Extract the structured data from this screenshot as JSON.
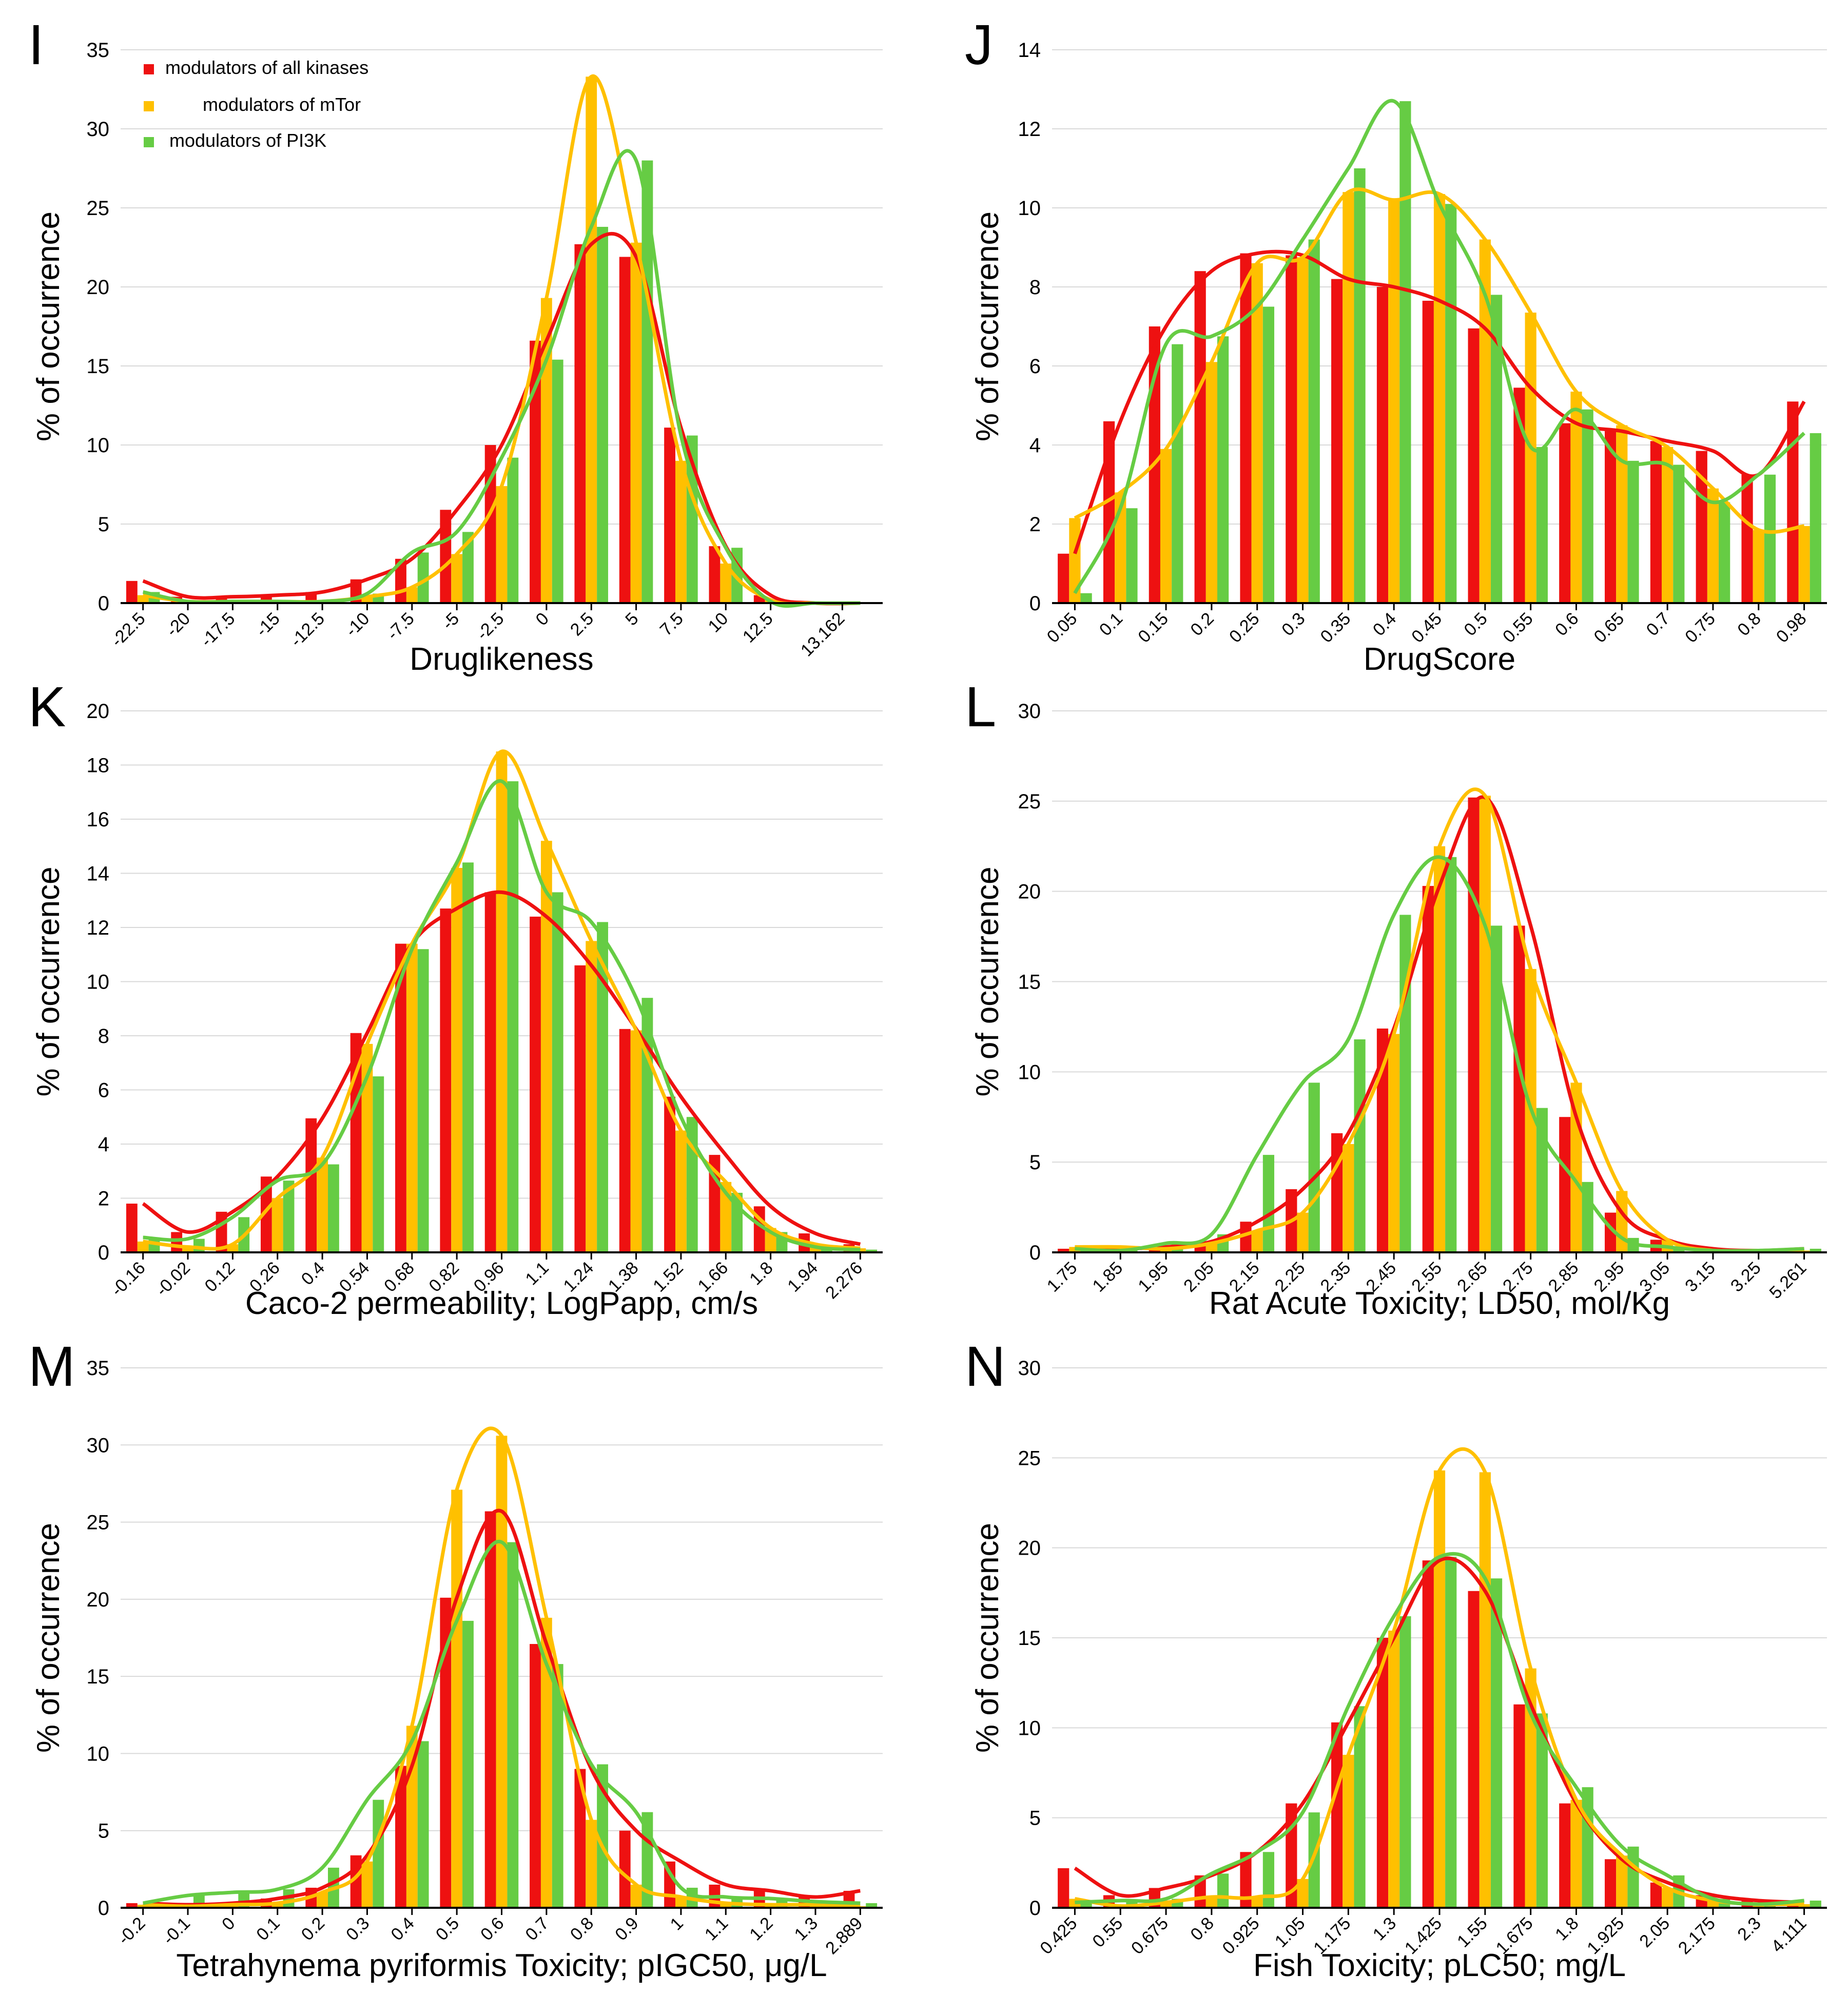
{
  "figure": {
    "legend": [
      {
        "name": "modulators of all kinases",
        "color": "#ee1111"
      },
      {
        "name": "modulators of mTor",
        "color": "#ffc000"
      },
      {
        "name": "modulators of PI3K",
        "color": "#66cc44"
      }
    ]
  },
  "chart_data": [
    {
      "panel": "I",
      "type": "bar",
      "xlabel": "Druglikeness",
      "ylabel": "% of occurrence",
      "ylim": [
        0,
        35
      ],
      "yticks": [
        0,
        5,
        10,
        15,
        20,
        25,
        30,
        35
      ],
      "tick_labels": [
        "-22.5",
        "-20",
        "-17.5",
        "-15",
        "-12.5",
        "-10",
        "-7.5",
        "-5",
        "-2.5",
        "0",
        "2.5",
        "5",
        "7.5",
        "10",
        "12.5",
        "13.162"
      ],
      "tick_positions": [
        0,
        1,
        2,
        3,
        4,
        5,
        6,
        7,
        8,
        9,
        10,
        11,
        12,
        13,
        14,
        15.6
      ],
      "bin_count": 17,
      "series": [
        {
          "name": "modulators of all kinases",
          "color": "#ee1111",
          "values": [
            1.4,
            0.4,
            0.4,
            0.5,
            0.7,
            1.5,
            2.8,
            5.9,
            10,
            16.6,
            22.7,
            21.9,
            11.1,
            3.6,
            0.5,
            0,
            0
          ]
        },
        {
          "name": "modulators of mTor",
          "color": "#ffc000",
          "values": [
            0.5,
            0.1,
            0.1,
            0.1,
            0.1,
            0.4,
            1,
            3.1,
            7.4,
            19.3,
            33.3,
            22.8,
            9,
            2.5,
            0.2,
            0,
            0
          ]
        },
        {
          "name": "modulators of PI3K",
          "color": "#66cc44",
          "values": [
            0.7,
            0.1,
            0.1,
            0.1,
            0.1,
            0.6,
            3.2,
            4.5,
            9.2,
            15.4,
            23.8,
            28,
            10.6,
            3.5,
            0.1,
            0,
            0
          ]
        }
      ],
      "legend": "top-left"
    },
    {
      "panel": "J",
      "type": "bar",
      "xlabel": "DrugScore",
      "ylabel": "% of occurrence",
      "ylim": [
        0,
        14
      ],
      "yticks": [
        0,
        2,
        4,
        6,
        8,
        10,
        12,
        14
      ],
      "tick_labels": [
        "0.05",
        "0.1",
        "0.15",
        "0.2",
        "0.25",
        "0.3",
        "0.35",
        "0.4",
        "0.45",
        "0.5",
        "0.55",
        "0.6",
        "0.65",
        "0.7",
        "0.75",
        "0.8",
        "0.98"
      ],
      "tick_positions": [
        0,
        1,
        2,
        3,
        4,
        5,
        6,
        7,
        8,
        9,
        10,
        11,
        12,
        13,
        14,
        15,
        16
      ],
      "bin_count": 17,
      "series": [
        {
          "name": "modulators of all kinases",
          "color": "#ee1111",
          "values": [
            1.25,
            4.6,
            7,
            8.4,
            8.85,
            8.8,
            8.2,
            8,
            7.65,
            6.95,
            5.45,
            4.55,
            4.35,
            4.1,
            3.85,
            3.25,
            5.1
          ]
        },
        {
          "name": "modulators of mTor",
          "color": "#ffc000",
          "values": [
            2.15,
            2.8,
            3.9,
            6.1,
            8.6,
            8.75,
            10.4,
            10.2,
            10.35,
            9.2,
            7.35,
            5.35,
            4.5,
            3.95,
            2.9,
            1.85,
            1.95
          ]
        },
        {
          "name": "modulators of PI3K",
          "color": "#66cc44",
          "values": [
            0.25,
            2.4,
            6.55,
            6.75,
            7.5,
            9.2,
            11,
            12.7,
            10.1,
            7.8,
            3.95,
            4.9,
            3.6,
            3.5,
            2.55,
            3.25,
            4.3
          ]
        }
      ]
    },
    {
      "panel": "K",
      "type": "bar",
      "xlabel": "Caco-2 permeability; LogPapp, cm/s",
      "ylabel": "% of occurrence",
      "ylim": [
        0,
        20
      ],
      "yticks": [
        0,
        2,
        4,
        6,
        8,
        10,
        12,
        14,
        16,
        18,
        20
      ],
      "tick_labels": [
        "-0.16",
        "-0.02",
        "0.12",
        "0.26",
        "0.4",
        "0.54",
        "0.68",
        "0.82",
        "0.96",
        "1.1",
        "1.24",
        "1.38",
        "1.52",
        "1.66",
        "1.8",
        "1.94",
        "2.276"
      ],
      "tick_positions": [
        0,
        1,
        2,
        3,
        4,
        5,
        6,
        7,
        8,
        9,
        10,
        11,
        12,
        13,
        14,
        15,
        16
      ],
      "bin_count": 17,
      "series": [
        {
          "name": "modulators of all kinases",
          "color": "#ee1111",
          "values": [
            1.8,
            0.75,
            1.5,
            2.8,
            4.95,
            8.1,
            11.4,
            12.7,
            13.3,
            12.4,
            10.6,
            8.25,
            5.75,
            3.6,
            1.7,
            0.7,
            0.3
          ]
        },
        {
          "name": "modulators of mTor",
          "color": "#ffc000",
          "values": [
            0.4,
            0.2,
            0.3,
            2,
            3.5,
            7.7,
            11.4,
            14.2,
            18.5,
            15.2,
            11.5,
            8.2,
            4.5,
            2.6,
            0.9,
            0.3,
            0.15
          ]
        },
        {
          "name": "modulators of PI3K",
          "color": "#66cc44",
          "values": [
            0.55,
            0.5,
            1.3,
            2.65,
            3.25,
            6.5,
            11.2,
            14.4,
            17.4,
            13.3,
            12.2,
            9.4,
            5,
            2.2,
            0.75,
            0.2,
            0.1
          ]
        }
      ]
    },
    {
      "panel": "L",
      "type": "bar",
      "xlabel": "Rat Acute Toxicity; LD50, mol/Kg",
      "ylabel": "% of occurrence",
      "ylim": [
        0,
        30
      ],
      "yticks": [
        0,
        5,
        10,
        15,
        20,
        25,
        30
      ],
      "tick_labels": [
        "1.75",
        "1.85",
        "1.95",
        "2.05",
        "2.15",
        "2.25",
        "2.35",
        "2.45",
        "2.55",
        "2.65",
        "2.75",
        "2.85",
        "2.95",
        "3.05",
        "3.15",
        "3.25",
        "5.261"
      ],
      "tick_positions": [
        0,
        1,
        2,
        3,
        4,
        5,
        6,
        7,
        8,
        9,
        10,
        11,
        12,
        13,
        14,
        15,
        16
      ],
      "bin_count": 17,
      "series": [
        {
          "name": "modulators of all kinases",
          "color": "#ee1111",
          "values": [
            0.2,
            0.2,
            0.3,
            0.6,
            1.7,
            3.5,
            6.6,
            12.4,
            20.3,
            25.2,
            18.1,
            7.5,
            2.2,
            0.7,
            0.2,
            0.1,
            0.2
          ]
        },
        {
          "name": "modulators of mTor",
          "color": "#ffc000",
          "values": [
            0.3,
            0.3,
            0.2,
            0.5,
            1.2,
            2.2,
            6,
            12.1,
            22.5,
            25.3,
            15.7,
            9.4,
            3.4,
            0.7,
            0.1,
            0.1,
            0.1
          ]
        },
        {
          "name": "modulators of PI3K",
          "color": "#66cc44",
          "values": [
            0.2,
            0.1,
            0.5,
            1,
            5.4,
            9.4,
            11.8,
            18.7,
            21.9,
            18.1,
            8,
            3.9,
            0.8,
            0.3,
            0.1,
            0.1,
            0.2
          ]
        }
      ]
    },
    {
      "panel": "M",
      "type": "bar",
      "xlabel": "Tetrahynema pyriformis Toxicity; pIGC50, μg/L",
      "ylabel": "% of occurrence",
      "ylim": [
        0,
        35
      ],
      "yticks": [
        0,
        5,
        10,
        15,
        20,
        25,
        30,
        35
      ],
      "tick_labels": [
        "-0.2",
        "-0.1",
        "0",
        "0.1",
        "0.2",
        "0.3",
        "0.4",
        "0.5",
        "0.6",
        "0.7",
        "0.8",
        "0.9",
        "1",
        "1.1",
        "1.2",
        "1.3",
        "2.889"
      ],
      "tick_positions": [
        0,
        1,
        2,
        3,
        4,
        5,
        6,
        7,
        8,
        9,
        10,
        11,
        12,
        13,
        14,
        15,
        16
      ],
      "bin_count": 17,
      "series": [
        {
          "name": "modulators of all kinases",
          "color": "#ee1111",
          "values": [
            0.3,
            0.2,
            0.3,
            0.6,
            1.3,
            3.4,
            9.2,
            20.1,
            25.7,
            17.1,
            9,
            5,
            3,
            1.5,
            1.1,
            0.7,
            1.1
          ]
        },
        {
          "name": "modulators of mTor",
          "color": "#ffc000",
          "values": [
            0.2,
            0.1,
            0.2,
            0.3,
            1,
            3,
            11.8,
            27.1,
            30.6,
            18.8,
            5.7,
            1.5,
            0.7,
            0.3,
            0.2,
            0.2,
            0.1
          ]
        },
        {
          "name": "modulators of PI3K",
          "color": "#66cc44",
          "values": [
            0.3,
            0.8,
            1,
            1.2,
            2.6,
            7,
            10.8,
            18.6,
            23.7,
            15.8,
            9.3,
            6.2,
            1.3,
            0.7,
            0.6,
            0.4,
            0.3
          ]
        }
      ]
    },
    {
      "panel": "N",
      "type": "bar",
      "xlabel": "Fish Toxicity; pLC50; mg/L",
      "ylabel": "% of occurrence",
      "ylim": [
        0,
        30
      ],
      "yticks": [
        0,
        5,
        10,
        15,
        20,
        25,
        30
      ],
      "tick_labels": [
        "0.425",
        "0.55",
        "0.675",
        "0.8",
        "0.925",
        "1.05",
        "1.175",
        "1.3",
        "1.425",
        "1.55",
        "1.675",
        "1.8",
        "1.925",
        "2.05",
        "2.175",
        "2.3",
        "4.111"
      ],
      "tick_positions": [
        0,
        1,
        2,
        3,
        4,
        5,
        6,
        7,
        8,
        9,
        10,
        11,
        12,
        13,
        14,
        15,
        16
      ],
      "bin_count": 17,
      "series": [
        {
          "name": "modulators of all kinases",
          "color": "#ee1111",
          "values": [
            2.2,
            0.7,
            1.1,
            1.8,
            3.1,
            5.8,
            10.3,
            15,
            19.3,
            17.6,
            11.3,
            5.8,
            2.7,
            1.4,
            0.7,
            0.4,
            0.3
          ]
        },
        {
          "name": "modulators of mTor",
          "color": "#ffc000",
          "values": [
            0.5,
            0.1,
            0.3,
            0.6,
            0.6,
            1.6,
            8.5,
            15.4,
            24.3,
            24.2,
            13.3,
            6,
            2.9,
            1.1,
            0.4,
            0.2,
            0.2
          ]
        },
        {
          "name": "modulators of PI3K",
          "color": "#66cc44",
          "values": [
            0.3,
            0.4,
            0.5,
            1.9,
            3.1,
            5.3,
            11.2,
            16.2,
            19.5,
            18.3,
            10.8,
            6.7,
            3.4,
            1.8,
            0.5,
            0.2,
            0.4
          ]
        }
      ]
    }
  ]
}
